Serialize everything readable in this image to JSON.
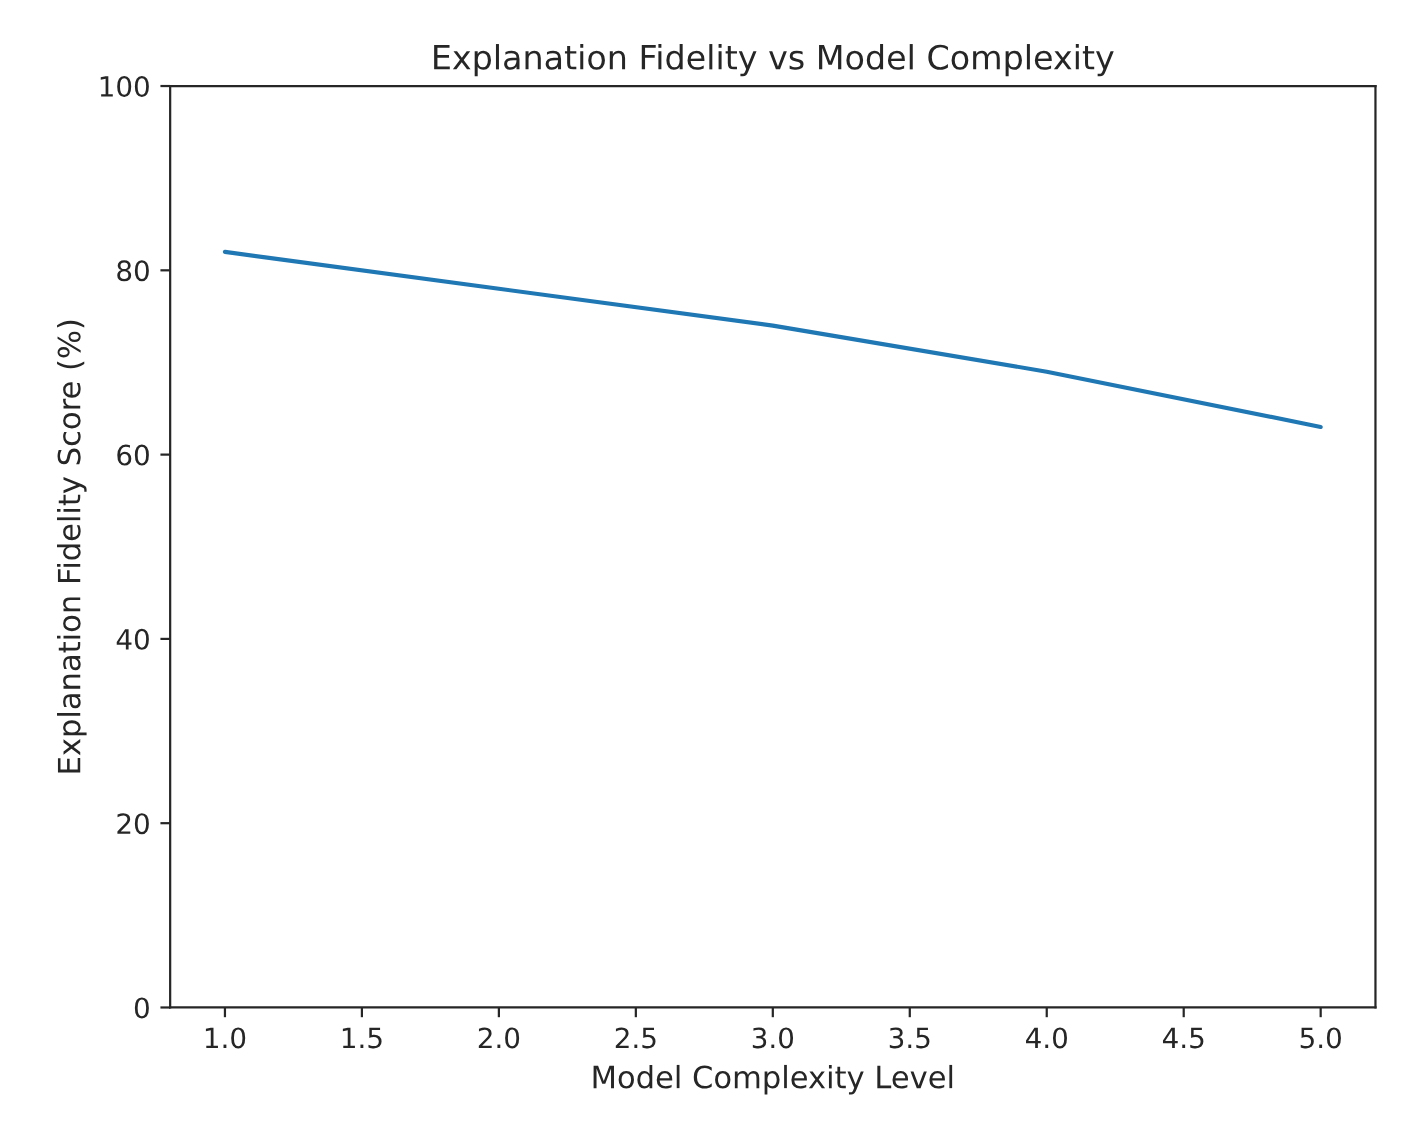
{
  "chart_data": {
    "type": "line",
    "title": "Explanation Fidelity vs Model Complexity",
    "xlabel": "Model Complexity Level",
    "ylabel": "Explanation Fidelity Score (%)",
    "x": [
      1,
      2,
      3,
      4,
      5
    ],
    "series": [
      {
        "color": "#1f77b4",
        "values": [
          82,
          78,
          74,
          69,
          63
        ]
      }
    ],
    "xlim": [
      0.8,
      5.2
    ],
    "xticks": [
      {
        "value": 1,
        "label": "1.0"
      },
      {
        "value": 1.5,
        "label": "1.5"
      },
      {
        "value": 2,
        "label": "2.0"
      },
      {
        "value": 2.5,
        "label": "2.5"
      },
      {
        "value": 3,
        "label": "3.0"
      },
      {
        "value": 3.5,
        "label": "3.5"
      },
      {
        "value": 4,
        "label": "4.0"
      },
      {
        "value": 4.5,
        "label": "4.5"
      },
      {
        "value": 5,
        "label": "5.0"
      }
    ],
    "ylim": [
      0,
      100
    ],
    "yticks": [
      0,
      20,
      40,
      60,
      80,
      100
    ],
    "grid": false,
    "legend": false
  }
}
